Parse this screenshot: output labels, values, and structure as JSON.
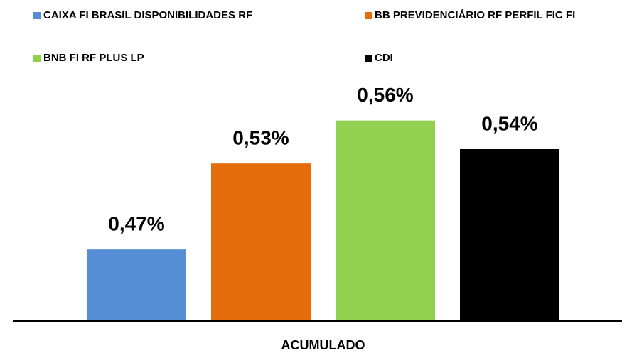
{
  "chart_data": {
    "type": "bar",
    "categories": [
      "ACUMULADO"
    ],
    "series": [
      {
        "name": "CAIXA FI BRASIL DISPONIBILIDADES RF",
        "color": "#558ed5",
        "values": [
          0.47
        ],
        "value_labels": [
          "0,47%"
        ]
      },
      {
        "name": "BB PREVIDENCIÁRIO RF PERFIL FIC FI",
        "color": "#e46c0a",
        "values": [
          0.53
        ],
        "value_labels": [
          "0,53%"
        ]
      },
      {
        "name": "BNB FI RF PLUS LP",
        "color": "#92d050",
        "values": [
          0.56
        ],
        "value_labels": [
          "0,56%"
        ]
      },
      {
        "name": "CDI",
        "color": "#000000",
        "values": [
          0.54
        ],
        "value_labels": [
          "0,54%"
        ]
      }
    ],
    "ylim": [
      0.42,
      0.6
    ],
    "legend": "top"
  }
}
